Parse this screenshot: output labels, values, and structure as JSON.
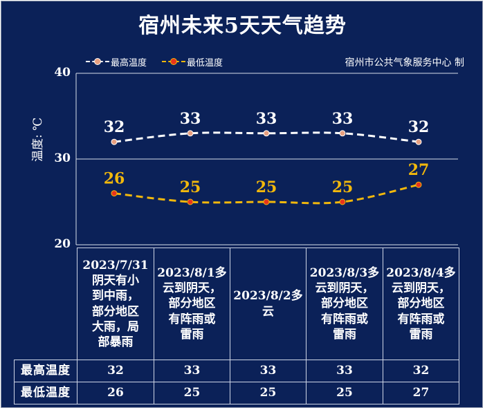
{
  "title": "宿州未来5天天气趋势",
  "source": "宿州市公共气象服务中心 制",
  "chart_data": {
    "type": "line",
    "ylabel": "温度: ℃",
    "ylim": [
      20,
      40
    ],
    "yticks": [
      "20",
      "30",
      "40"
    ],
    "categories": [
      "2023/7/31 阴天有小到中雨，部分地区大雨，局部暴雨",
      "2023/8/1多云到阴天，部分地区有阵雨或雷雨",
      "2023/8/2多云",
      "2023/8/3多云到阴天，部分地区有阵雨或雷雨",
      "2023/8/4多云到阴天，部分地区有阵雨或雷雨"
    ],
    "series": [
      {
        "name": "最高温度",
        "values": [
          32,
          33,
          33,
          33,
          32
        ],
        "color": "#ffffff",
        "marker": "#e8a080"
      },
      {
        "name": "最低温度",
        "values": [
          26,
          25,
          25,
          25,
          27
        ],
        "color": "#f2b80c",
        "marker": "#e8341c"
      }
    ],
    "grid": true,
    "legend": "top-left"
  },
  "table": {
    "row_headers": [
      "最高温度",
      "最低温度"
    ],
    "weather": [
      "2023/7/31\n阴天有小\n到中雨，\n部分地区\n大雨，局\n部暴雨",
      "2023/8/1多\n云到阴天，\n部分地区\n有阵雨或\n雷雨",
      "2023/8/2多\n云",
      "2023/8/3多\n云到阴天，\n部分地区\n有阵雨或\n雷雨",
      "2023/8/4多\n云到阴天，\n部分地区\n有阵雨或\n雷雨"
    ],
    "high": [
      "32",
      "33",
      "33",
      "33",
      "32"
    ],
    "low": [
      "26",
      "25",
      "25",
      "25",
      "27"
    ]
  }
}
